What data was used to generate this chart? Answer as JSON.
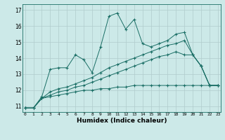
{
  "title": "",
  "xlabel": "Humidex (Indice chaleur)",
  "background_color": "#cce9e8",
  "grid_color": "#b0cccc",
  "line_color": "#1a6e65",
  "x_ticks": [
    0,
    1,
    2,
    3,
    4,
    5,
    6,
    7,
    8,
    9,
    10,
    11,
    12,
    13,
    14,
    15,
    16,
    17,
    18,
    19,
    20,
    21,
    22,
    23
  ],
  "y_ticks": [
    11,
    12,
    13,
    14,
    15,
    16,
    17
  ],
  "xlim": [
    -0.3,
    23.3
  ],
  "ylim": [
    10.65,
    17.35
  ],
  "series": [
    [
      10.9,
      10.9,
      11.6,
      13.3,
      13.4,
      13.4,
      14.2,
      13.9,
      13.1,
      14.7,
      16.6,
      16.8,
      15.8,
      16.4,
      14.9,
      14.7,
      14.9,
      15.1,
      15.5,
      15.6,
      14.2,
      13.5,
      12.3,
      12.3
    ],
    [
      10.9,
      10.9,
      11.5,
      11.9,
      12.1,
      12.2,
      12.4,
      12.6,
      12.8,
      13.1,
      13.4,
      13.6,
      13.8,
      14.0,
      14.2,
      14.4,
      14.6,
      14.8,
      14.9,
      15.1,
      14.2,
      13.5,
      12.3,
      12.3
    ],
    [
      10.9,
      10.9,
      11.5,
      11.7,
      11.9,
      12.0,
      12.2,
      12.3,
      12.5,
      12.7,
      12.9,
      13.1,
      13.3,
      13.5,
      13.7,
      13.9,
      14.1,
      14.2,
      14.4,
      14.2,
      14.2,
      13.5,
      12.3,
      12.3
    ],
    [
      10.9,
      10.9,
      11.5,
      11.6,
      11.7,
      11.8,
      11.9,
      12.0,
      12.0,
      12.1,
      12.1,
      12.2,
      12.2,
      12.3,
      12.3,
      12.3,
      12.3,
      12.3,
      12.3,
      12.3,
      12.3,
      12.3,
      12.3,
      12.3
    ]
  ]
}
